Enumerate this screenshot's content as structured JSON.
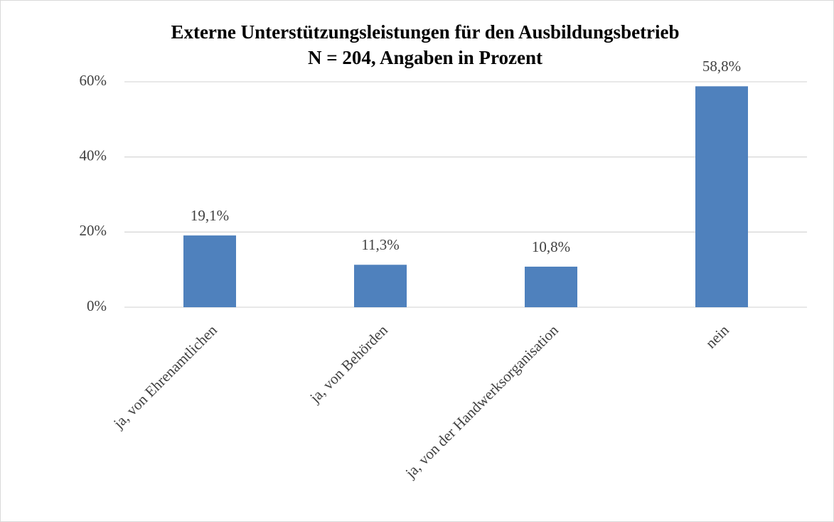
{
  "chart_data": {
    "type": "bar",
    "title": "Externe Unterstützungsleistungen für den Ausbildungsbetrieb",
    "subtitle": "N = 204,  Angaben in Prozent",
    "categories": [
      "ja, von Ehrenamtlichen",
      "ja, von Behörden",
      "ja, von der Handwerksorganisation",
      "nein"
    ],
    "values": [
      19.1,
      11.3,
      10.8,
      58.8
    ],
    "value_labels": [
      "19,1%",
      "11,3%",
      "10,8%",
      "58,8%"
    ],
    "color": "#4f81bd",
    "ylim": [
      0,
      60
    ],
    "yticks": [
      {
        "value": 0,
        "label": "0%"
      },
      {
        "value": 20,
        "label": "20%"
      },
      {
        "value": 40,
        "label": "40%"
      },
      {
        "value": 60,
        "label": "60%"
      }
    ],
    "grid": true
  }
}
